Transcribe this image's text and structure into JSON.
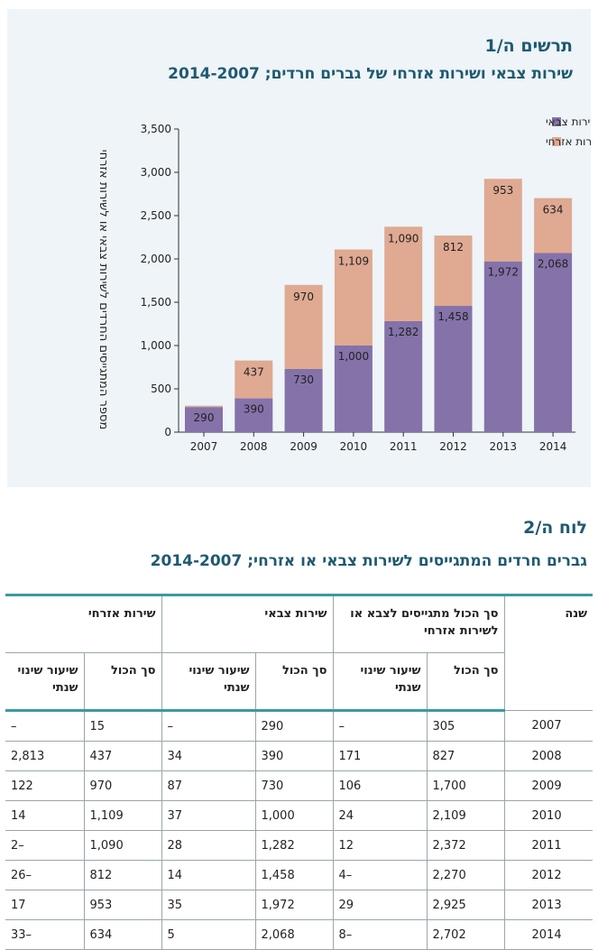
{
  "figure": {
    "label": "תרשים ה/1",
    "title": "שירות צבאי ושירות אזרחי של גברים חרדים; 2014-2007"
  },
  "chart_data": {
    "type": "bar",
    "stacked": true,
    "categories": [
      "2007",
      "2008",
      "2009",
      "2010",
      "2011",
      "2012",
      "2013",
      "2014"
    ],
    "series": [
      {
        "name": "שירות צבאי",
        "color": "#8472a9",
        "values": [
          290,
          390,
          730,
          1000,
          1282,
          1458,
          1972,
          2068
        ],
        "value_labels": [
          "290",
          "390",
          "730",
          "1,000",
          "1,282",
          "1,458",
          "1,972",
          "2,068"
        ]
      },
      {
        "name": "שירות אזרחי",
        "color": "#dfa992",
        "values": [
          15,
          437,
          970,
          1109,
          1090,
          812,
          953,
          634
        ],
        "value_labels": [
          "",
          "437",
          "970",
          "1,109",
          "1,090",
          "812",
          "953",
          "634"
        ]
      }
    ],
    "ylabel": "מספר המתגייסים החרדים לשירות צבאי או לשירות אזרחי",
    "ylim": [
      0,
      3500
    ],
    "yticks": [
      0,
      500,
      1000,
      1500,
      2000,
      2500,
      3000,
      3500
    ],
    "ytick_labels": [
      "0",
      "500",
      "1,000",
      "1,500",
      "2,000",
      "2,500",
      "3,000",
      "3,500"
    ],
    "legend_position": "top-right",
    "grid": false
  },
  "table": {
    "label": "לוח ה/2",
    "title": "גברים חרדים המתגייסים לשירות צבאי או אזרחי; 2014-2007",
    "headers": {
      "year": "שנה",
      "total_group": "סך הכול מתגייסים לצבא או לשירות אזרחי",
      "military_group": "שירות צבאי",
      "civil_group": "שירות אזרחי",
      "sum": "סך הכול",
      "rate": "שיעור שינוי שנתי"
    },
    "rows": [
      [
        "2007",
        "305",
        "–",
        "290",
        "–",
        "15",
        "–"
      ],
      [
        "2008",
        "827",
        "171",
        "390",
        "34",
        "437",
        "2,813"
      ],
      [
        "2009",
        "1,700",
        "106",
        "730",
        "87",
        "970",
        "122"
      ],
      [
        "2010",
        "2,109",
        "24",
        "1,000",
        "37",
        "1,109",
        "14"
      ],
      [
        "2011",
        "2,372",
        "12",
        "1,282",
        "28",
        "1,090",
        "–2"
      ],
      [
        "2012",
        "2,270",
        "–4",
        "1,458",
        "14",
        "812",
        "–26"
      ],
      [
        "2013",
        "2,925",
        "29",
        "1,972",
        "35",
        "953",
        "17"
      ],
      [
        "2014",
        "2,702",
        "–8",
        "2,068",
        "5",
        "634",
        "–33"
      ]
    ]
  }
}
